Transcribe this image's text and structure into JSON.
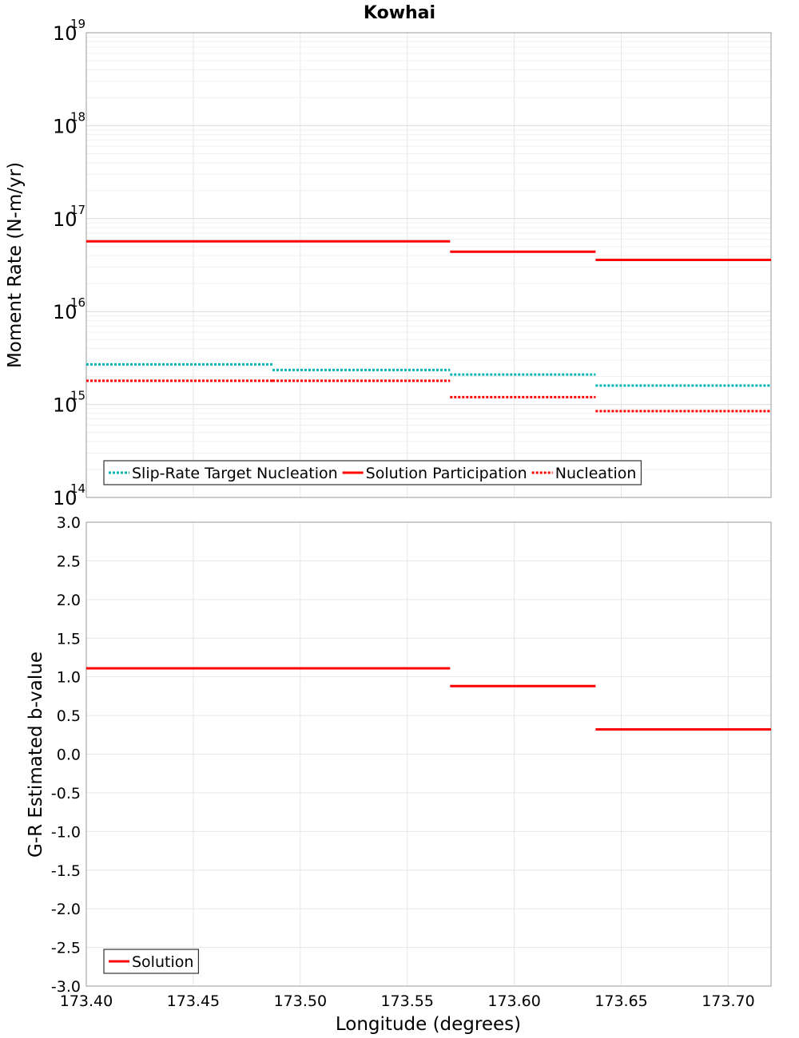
{
  "title": "Kowhai",
  "xlabel": "Longitude (degrees)",
  "xlim": [
    173.4,
    173.72
  ],
  "xticks": [
    "173.40",
    "173.45",
    "173.50",
    "173.55",
    "173.60",
    "173.65",
    "173.70"
  ],
  "colors": {
    "red": "#ff0000",
    "cyan": "#00b4b4"
  },
  "chart_data": [
    {
      "type": "line",
      "subtype": "step",
      "ylabel": "Moment Rate (N-m/yr)",
      "yscale": "log",
      "ylim": [
        100000000000000.0,
        1e+19
      ],
      "ytick_base": "10",
      "ytick_exponents": [
        "14",
        "15",
        "16",
        "17",
        "18",
        "19"
      ],
      "grid": true,
      "legend_position": "bottom-left",
      "series": [
        {
          "name": "Slip-Rate Target Nucleation",
          "style": "dotted",
          "color": "#00b4b4",
          "segments": [
            {
              "x0": 173.4,
              "x1": 173.487,
              "y": 2700000000000000.0
            },
            {
              "x0": 173.487,
              "x1": 173.57,
              "y": 2350000000000000.0
            },
            {
              "x0": 173.57,
              "x1": 173.638,
              "y": 2100000000000000.0
            },
            {
              "x0": 173.638,
              "x1": 173.72,
              "y": 1600000000000000.0
            }
          ]
        },
        {
          "name": "Solution Participation",
          "style": "solid",
          "color": "#ff0000",
          "segments": [
            {
              "x0": 173.4,
              "x1": 173.487,
              "y": 5.7e+16
            },
            {
              "x0": 173.487,
              "x1": 173.57,
              "y": 5.7e+16
            },
            {
              "x0": 173.57,
              "x1": 173.638,
              "y": 4.4e+16
            },
            {
              "x0": 173.638,
              "x1": 173.72,
              "y": 3.6e+16
            }
          ]
        },
        {
          "name": "Nucleation",
          "style": "dotted",
          "color": "#ff0000",
          "segments": [
            {
              "x0": 173.4,
              "x1": 173.487,
              "y": 1800000000000000.0
            },
            {
              "x0": 173.487,
              "x1": 173.57,
              "y": 1800000000000000.0
            },
            {
              "x0": 173.57,
              "x1": 173.638,
              "y": 1200000000000000.0
            },
            {
              "x0": 173.638,
              "x1": 173.72,
              "y": 850000000000000.0
            }
          ]
        }
      ]
    },
    {
      "type": "line",
      "subtype": "step",
      "ylabel": "G-R Estimated b-value",
      "ylim": [
        -3.0,
        3.0
      ],
      "yticks": [
        "3.0",
        "2.5",
        "2.0",
        "1.5",
        "1.0",
        "0.5",
        "0.0",
        "-0.5",
        "-1.0",
        "-1.5",
        "-2.0",
        "-2.5",
        "-3.0"
      ],
      "grid": true,
      "legend_position": "bottom-left",
      "series": [
        {
          "name": "Solution",
          "style": "solid",
          "color": "#ff0000",
          "segments": [
            {
              "x0": 173.4,
              "x1": 173.487,
              "y": 1.11
            },
            {
              "x0": 173.487,
              "x1": 173.57,
              "y": 1.11
            },
            {
              "x0": 173.57,
              "x1": 173.638,
              "y": 0.88
            },
            {
              "x0": 173.638,
              "x1": 173.72,
              "y": 0.32
            }
          ]
        }
      ]
    }
  ]
}
